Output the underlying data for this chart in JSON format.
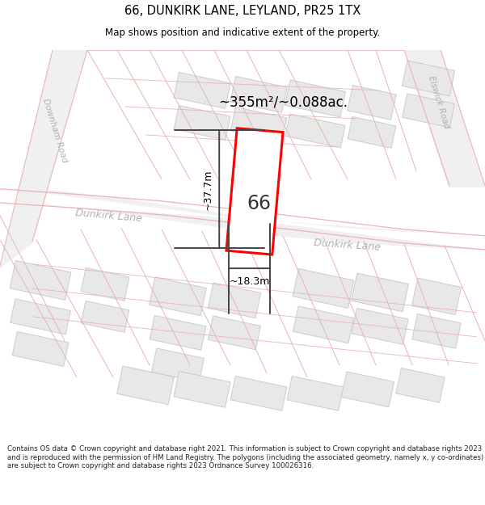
{
  "title": "66, DUNKIRK LANE, LEYLAND, PR25 1TX",
  "subtitle": "Map shows position and indicative extent of the property.",
  "footer": "Contains OS data © Crown copyright and database right 2021. This information is subject to Crown copyright and database rights 2023 and is reproduced with the permission of HM Land Registry. The polygons (including the associated geometry, namely x, y co-ordinates) are subject to Crown copyright and database rights 2023 Ordnance Survey 100026316.",
  "area_label": "~355m²/~0.088ac.",
  "width_label": "~18.3m",
  "height_label": "~37.7m",
  "number_label": "66",
  "bg_color": "#ffffff",
  "map_bg": "#ffffff",
  "road_line_color": "#e8b4b4",
  "road_fill_color": "#f0f0f0",
  "building_fill": "#e8e8e8",
  "building_stroke": "#cccccc",
  "highlight_fill": "#ffffff",
  "highlight_stroke": "#ff0000",
  "dim_line_color": "#444444",
  "road_label_color": "#b0b0b0",
  "text_color": "#000000"
}
